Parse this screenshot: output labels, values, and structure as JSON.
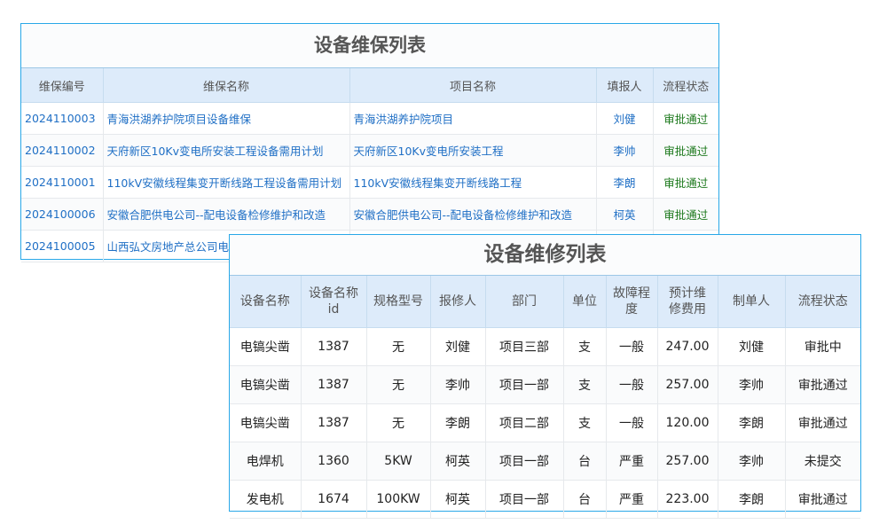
{
  "maintenance_table": {
    "title": "设备维保列表",
    "headers": [
      "维保编号",
      "维保名称",
      "项目名称",
      "填报人",
      "流程状态"
    ],
    "rows": [
      [
        "2024110003",
        "青海洪湖养护院项目设备维保",
        "青海洪湖养护院项目",
        "刘健",
        "审批通过"
      ],
      [
        "2024110002",
        "天府新区10Kv变电所安装工程设备需用计划",
        "天府新区10Kv变电所安装工程",
        "李帅",
        "审批通过"
      ],
      [
        "2024110001",
        "110kV安徽线程集变开断线路工程设备需用计划",
        "110kV安徽线程集变开断线路工程",
        "李朗",
        "审批通过"
      ],
      [
        "2024100006",
        "安徽合肥供电公司--配电设备检修维护和改造",
        "安徽合肥供电公司--配电设备检修维护和改造",
        "柯英",
        "审批通过"
      ],
      [
        "2024100005",
        "山西弘文房地产总公司电",
        "",
        "",
        ""
      ]
    ]
  },
  "repair_table": {
    "title": "设备维修列表",
    "headers": [
      "设备名称",
      "设备名称id",
      "规格型号",
      "报修人",
      "部门",
      "单位",
      "故障程度",
      "预计维修费用",
      "制单人",
      "流程状态"
    ],
    "rows": [
      [
        "电镐尖凿",
        "1387",
        "无",
        "刘健",
        "项目三部",
        "支",
        "一般",
        "247.00",
        "刘健",
        "审批中"
      ],
      [
        "电镐尖凿",
        "1387",
        "无",
        "李帅",
        "项目一部",
        "支",
        "一般",
        "257.00",
        "李帅",
        "审批通过"
      ],
      [
        "电镐尖凿",
        "1387",
        "无",
        "李朗",
        "项目二部",
        "支",
        "一般",
        "120.00",
        "李朗",
        "审批通过"
      ],
      [
        "电焊机",
        "1360",
        "5KW",
        "柯英",
        "项目一部",
        "台",
        "严重",
        "257.00",
        "李帅",
        "未提交"
      ],
      [
        "发电机",
        "1674",
        "100KW",
        "柯英",
        "项目一部",
        "台",
        "严重",
        "223.00",
        "李朗",
        "审批通过"
      ]
    ]
  },
  "colors": {
    "border": "#29a8e8",
    "header_bg": "#ddebfa",
    "link": "#1f6fc5",
    "approved": "#1e7a1e",
    "pending": "#f0a020",
    "not_submitted": "#1515d0"
  }
}
